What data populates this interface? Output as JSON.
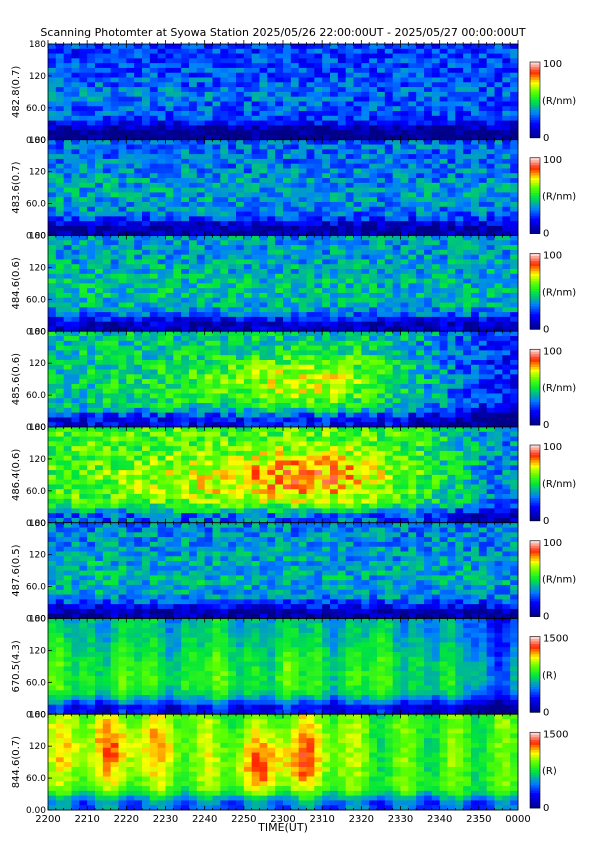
{
  "chart_data": {
    "type": "heatmap",
    "title": "Scanning Photomter at Syowa Station 2025/05/26 22:00:00UT - 2025/05/27 00:00:00UT",
    "xlabel": "TIME(UT)",
    "x_ticks": [
      "2200",
      "2210",
      "2220",
      "2230",
      "2240",
      "2250",
      "2300",
      "2310",
      "2320",
      "2330",
      "2340",
      "2350",
      "0000"
    ],
    "x_range_minutes": [
      0,
      120
    ],
    "y_ticks": [
      "0.00",
      "60.0",
      "120",
      "180"
    ],
    "y_range": [
      0,
      180
    ],
    "colorscale": [
      "#00008b",
      "#0000ff",
      "#0080ff",
      "#00ff00",
      "#ffff00",
      "#ff0000",
      "#ffffff"
    ],
    "panels": [
      {
        "ylabel": "482.8(0.7)",
        "colorbar_max": "100",
        "colorbar_min": "0",
        "unit": "(R/nm)",
        "pattern": "noise",
        "base": 0.24
      },
      {
        "ylabel": "483.6(0.7)",
        "colorbar_max": "100",
        "colorbar_min": "0",
        "unit": "(R/nm)",
        "pattern": "noise",
        "base": 0.3
      },
      {
        "ylabel": "484.6(0.6)",
        "colorbar_max": "100",
        "colorbar_min": "0",
        "unit": "(R/nm)",
        "pattern": "noise",
        "base": 0.35
      },
      {
        "ylabel": "485.6(0.6)",
        "colorbar_max": "100",
        "colorbar_min": "0",
        "unit": "(R/nm)",
        "pattern": "hotspot",
        "base": 0.42
      },
      {
        "ylabel": "486.4(0.6)",
        "colorbar_max": "100",
        "colorbar_min": "0",
        "unit": "(R/nm)",
        "pattern": "hotspot",
        "base": 0.55
      },
      {
        "ylabel": "487.6(0.5)",
        "colorbar_max": "100",
        "colorbar_min": "0",
        "unit": "(R/nm)",
        "pattern": "noise",
        "base": 0.33
      },
      {
        "ylabel": "670.5(4.3)",
        "colorbar_max": "1500",
        "colorbar_min": "0",
        "unit": "(R)",
        "pattern": "streaks",
        "base": 0.4
      },
      {
        "ylabel": "844.6(0.7)",
        "colorbar_max": "1500",
        "colorbar_min": "0",
        "unit": "(R)",
        "pattern": "patches",
        "base": 0.55
      }
    ]
  }
}
